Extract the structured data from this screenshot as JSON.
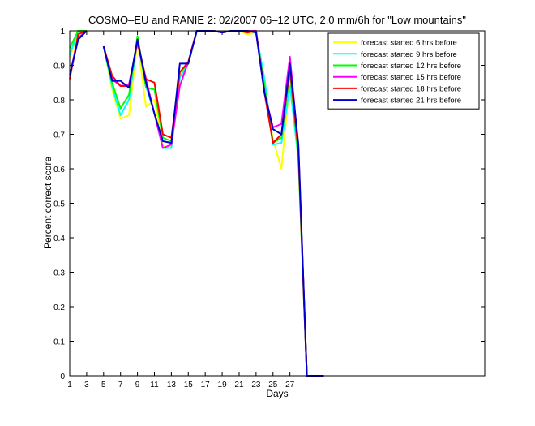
{
  "chart_data": {
    "type": "line",
    "title": "COSMO–EU and RANIE 2: 02/2007 06–12 UTC, 2.0 mm/6h for \"Low mountains\"",
    "xlabel": "Days",
    "ylabel": "Percent correct score",
    "xlim": [
      1,
      50
    ],
    "ylim": [
      0,
      1
    ],
    "x_ticks": [
      1,
      3,
      5,
      7,
      9,
      11,
      13,
      15,
      17,
      19,
      21,
      23,
      25,
      27
    ],
    "y_ticks": [
      0,
      0.1,
      0.2,
      0.3,
      0.4,
      0.5,
      0.6,
      0.7,
      0.8,
      0.9,
      1
    ],
    "y_tick_labels": [
      "0",
      "0.1",
      "0.2",
      "0.3",
      "0.4",
      "0.5",
      "0.6",
      "0.7",
      "0.8",
      "0.9",
      "1"
    ],
    "grid": false,
    "legend_position": "top-right",
    "series": [
      {
        "name": "forecast started 6 hrs before",
        "color": "#ffff00",
        "values": [
          [
            1,
            0.92
          ],
          [
            2,
            1.0
          ],
          [
            3,
            1.0
          ],
          [
            4,
            null
          ],
          [
            5,
            0.955
          ],
          [
            6,
            0.83
          ],
          [
            7,
            0.745
          ],
          [
            8,
            0.755
          ],
          [
            9,
            0.97
          ],
          [
            10,
            0.78
          ],
          [
            11,
            0.8
          ],
          [
            12,
            0.665
          ],
          [
            13,
            0.665
          ],
          [
            14,
            0.87
          ],
          [
            15,
            0.905
          ],
          [
            16,
            1.0
          ],
          [
            17,
            1.0
          ],
          [
            18,
            1.0
          ],
          [
            19,
            0.995
          ],
          [
            20,
            1.0
          ],
          [
            21,
            1.0
          ],
          [
            22,
            0.99
          ],
          [
            23,
            0.995
          ],
          [
            24,
            0.83
          ],
          [
            25,
            0.685
          ],
          [
            26,
            0.6
          ],
          [
            27,
            0.86
          ],
          [
            28,
            0.62
          ],
          [
            29,
            0.0
          ],
          [
            30,
            0.0
          ],
          [
            31,
            0.0
          ]
        ]
      },
      {
        "name": "forecast started 9 hrs before",
        "color": "#00ffff",
        "values": [
          [
            1,
            0.93
          ],
          [
            2,
            1.0
          ],
          [
            3,
            1.0
          ],
          [
            4,
            null
          ],
          [
            5,
            0.955
          ],
          [
            6,
            0.84
          ],
          [
            7,
            0.755
          ],
          [
            8,
            0.8
          ],
          [
            9,
            0.975
          ],
          [
            10,
            0.84
          ],
          [
            11,
            0.76
          ],
          [
            12,
            0.66
          ],
          [
            13,
            0.66
          ],
          [
            14,
            0.865
          ],
          [
            15,
            0.905
          ],
          [
            16,
            1.0
          ],
          [
            17,
            1.0
          ],
          [
            18,
            1.0
          ],
          [
            19,
            0.995
          ],
          [
            20,
            1.0
          ],
          [
            21,
            1.0
          ],
          [
            22,
            1.0
          ],
          [
            23,
            0.995
          ],
          [
            24,
            0.86
          ],
          [
            25,
            0.67
          ],
          [
            26,
            0.675
          ],
          [
            27,
            0.84
          ],
          [
            28,
            0.63
          ],
          [
            29,
            0.0
          ],
          [
            30,
            0.0
          ],
          [
            31,
            0.0
          ]
        ]
      },
      {
        "name": "forecast started 12 hrs before",
        "color": "#00ff00",
        "values": [
          [
            1,
            0.95
          ],
          [
            2,
            1.0
          ],
          [
            3,
            1.0
          ],
          [
            4,
            null
          ],
          [
            5,
            0.955
          ],
          [
            6,
            0.85
          ],
          [
            7,
            0.775
          ],
          [
            8,
            0.815
          ],
          [
            9,
            0.985
          ],
          [
            10,
            0.835
          ],
          [
            11,
            0.83
          ],
          [
            12,
            0.69
          ],
          [
            13,
            0.68
          ],
          [
            14,
            0.88
          ],
          [
            15,
            0.905
          ],
          [
            16,
            1.0
          ],
          [
            17,
            1.0
          ],
          [
            18,
            1.0
          ],
          [
            19,
            0.995
          ],
          [
            20,
            1.0
          ],
          [
            21,
            1.0
          ],
          [
            22,
            1.0
          ],
          [
            23,
            0.995
          ],
          [
            24,
            0.84
          ],
          [
            25,
            0.675
          ],
          [
            26,
            0.69
          ],
          [
            27,
            0.88
          ],
          [
            28,
            0.64
          ],
          [
            29,
            0.0
          ],
          [
            30,
            0.0
          ],
          [
            31,
            0.0
          ]
        ]
      },
      {
        "name": "forecast started 15 hrs before",
        "color": "#ff00ff",
        "values": [
          [
            1,
            0.87
          ],
          [
            2,
            0.98
          ],
          [
            3,
            1.0
          ],
          [
            4,
            null
          ],
          [
            5,
            0.955
          ],
          [
            6,
            0.86
          ],
          [
            7,
            0.84
          ],
          [
            8,
            0.845
          ],
          [
            9,
            0.965
          ],
          [
            10,
            0.86
          ],
          [
            11,
            0.76
          ],
          [
            12,
            0.66
          ],
          [
            13,
            0.67
          ],
          [
            14,
            0.84
          ],
          [
            15,
            0.91
          ],
          [
            16,
            1.0
          ],
          [
            17,
            1.0
          ],
          [
            18,
            1.0
          ],
          [
            19,
            0.995
          ],
          [
            20,
            1.0
          ],
          [
            21,
            1.0
          ],
          [
            22,
            1.0
          ],
          [
            23,
            1.0
          ],
          [
            24,
            0.82
          ],
          [
            25,
            0.72
          ],
          [
            26,
            0.73
          ],
          [
            27,
            0.925
          ],
          [
            28,
            0.66
          ],
          [
            29,
            0.0
          ],
          [
            30,
            0.0
          ],
          [
            31,
            0.0
          ]
        ]
      },
      {
        "name": "forecast started 18 hrs before",
        "color": "#ff0000",
        "values": [
          [
            1,
            0.86
          ],
          [
            2,
            0.99
          ],
          [
            3,
            1.0
          ],
          [
            4,
            null
          ],
          [
            5,
            0.955
          ],
          [
            6,
            0.87
          ],
          [
            7,
            0.84
          ],
          [
            8,
            0.84
          ],
          [
            9,
            0.97
          ],
          [
            10,
            0.86
          ],
          [
            11,
            0.85
          ],
          [
            12,
            0.7
          ],
          [
            13,
            0.69
          ],
          [
            14,
            0.88
          ],
          [
            15,
            0.91
          ],
          [
            16,
            1.0
          ],
          [
            17,
            1.0
          ],
          [
            18,
            1.0
          ],
          [
            19,
            0.995
          ],
          [
            20,
            1.0
          ],
          [
            21,
            1.0
          ],
          [
            22,
            0.995
          ],
          [
            23,
            1.0
          ],
          [
            24,
            0.82
          ],
          [
            25,
            0.675
          ],
          [
            26,
            0.7
          ],
          [
            27,
            0.89
          ],
          [
            28,
            0.65
          ],
          [
            29,
            0.0
          ],
          [
            30,
            0.0
          ],
          [
            31,
            0.0
          ]
        ]
      },
      {
        "name": "forecast started 21 hrs before",
        "color": "#0000cc",
        "values": [
          [
            1,
            0.87
          ],
          [
            2,
            0.975
          ],
          [
            3,
            1.0
          ],
          [
            4,
            null
          ],
          [
            5,
            0.955
          ],
          [
            6,
            0.855
          ],
          [
            7,
            0.855
          ],
          [
            8,
            0.835
          ],
          [
            9,
            0.975
          ],
          [
            10,
            0.85
          ],
          [
            11,
            0.76
          ],
          [
            12,
            0.68
          ],
          [
            13,
            0.675
          ],
          [
            14,
            0.905
          ],
          [
            15,
            0.905
          ],
          [
            16,
            1.0
          ],
          [
            17,
            1.0
          ],
          [
            18,
            1.0
          ],
          [
            19,
            0.995
          ],
          [
            20,
            1.0
          ],
          [
            21,
            1.0
          ],
          [
            22,
            1.0
          ],
          [
            23,
            0.995
          ],
          [
            24,
            0.82
          ],
          [
            25,
            0.715
          ],
          [
            26,
            0.7
          ],
          [
            27,
            0.905
          ],
          [
            28,
            0.67
          ],
          [
            29,
            0.0
          ],
          [
            30,
            0.0
          ],
          [
            31,
            0.0
          ]
        ]
      }
    ]
  }
}
